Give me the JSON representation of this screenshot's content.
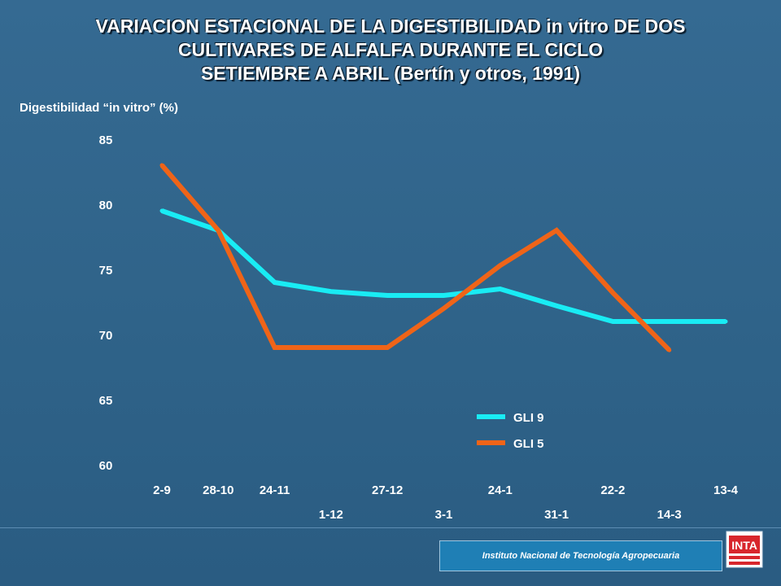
{
  "title_lines": [
    "VARIACION ESTACIONAL DE LA DIGESTIBILIDAD in vitro DE DOS",
    "CULTIVARES DE ALFALFA DURANTE EL CICLO",
    "SETIEMBRE A ABRIL (Bertín y otros, 1991)"
  ],
  "footer": {
    "institution": "Instituto Nacional de Tecnología Agropecuaria",
    "logo_text": "INTA"
  },
  "colors": {
    "background": "#326690",
    "gli9": "#19ecf4",
    "gli5": "#ef6418",
    "footer": "#1f7fb5"
  },
  "chart_data": {
    "type": "line",
    "title": "VARIACION ESTACIONAL DE LA DIGESTIBILIDAD in vitro DE DOS CULTIVARES DE ALFALFA DURANTE EL CICLO SETIEMBRE A ABRIL (Bertín y otros, 1991)",
    "ylabel": "Digestibilidad “in vitro” (%)",
    "xlabel": "",
    "ylim": [
      60,
      85
    ],
    "yticks": [
      "85",
      "80",
      "75",
      "70",
      "65",
      "60"
    ],
    "categories": [
      "2-9",
      "28-10",
      "24-11",
      "1-12",
      "27-12",
      "3-1",
      "24-1",
      "31-1",
      "22-2",
      "14-3",
      "13-4"
    ],
    "grid": false,
    "legend_position": "bottom-right",
    "series": [
      {
        "name": "GLI 9",
        "values": [
          79.5,
          78.0,
          74.0,
          73.3,
          73.0,
          73.0,
          73.5,
          72.2,
          71.0,
          71.0,
          71.0
        ]
      },
      {
        "name": "GLI 5",
        "values": [
          83.0,
          78.0,
          69.0,
          69.0,
          69.0,
          72.0,
          75.3,
          78.0,
          73.2,
          68.8,
          null
        ]
      }
    ]
  }
}
